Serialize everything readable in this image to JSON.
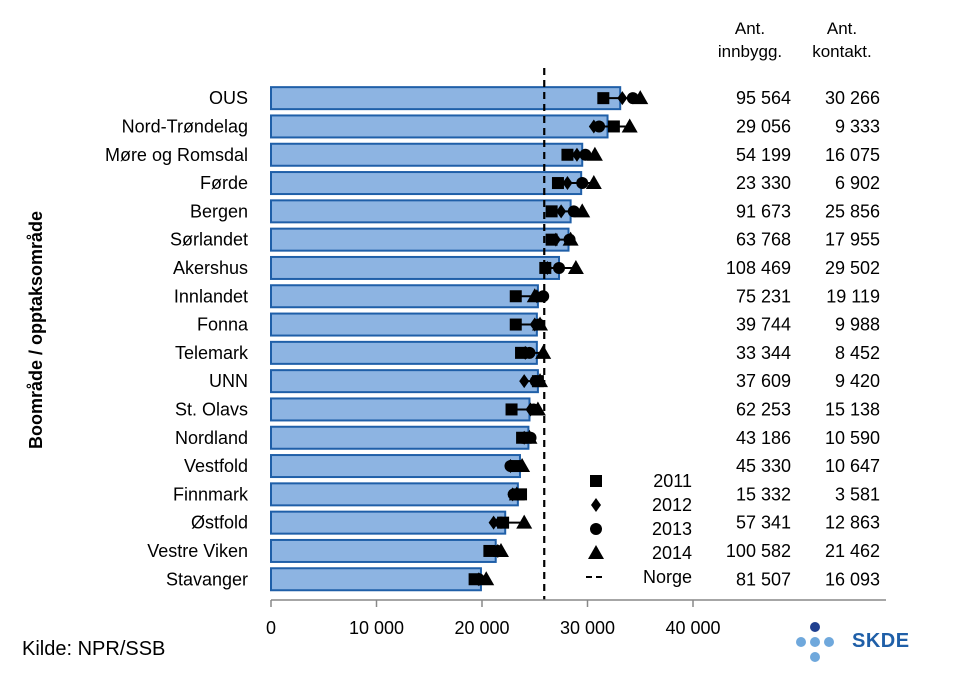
{
  "chart_data": {
    "type": "bar",
    "ylabel": "Boområde / opptaksområde",
    "xlim": [
      0,
      40000
    ],
    "xticks": [
      0,
      10000,
      20000,
      30000,
      40000
    ],
    "xtick_labels": [
      "0",
      "10 000",
      "20 000",
      "30 000",
      "40 000"
    ],
    "reference_line": {
      "name": "Norge",
      "value": 25900
    },
    "table_headers": {
      "population": "Ant.\ninnbygg.",
      "contacts": "Ant.\nkontakt."
    },
    "table_header_lines": {
      "population": [
        "Ant.",
        "innbygg."
      ],
      "contacts": [
        "Ant.",
        "kontakt."
      ]
    },
    "bar_color": "#8db4e2",
    "bar_edge_color": "#1f5fa8",
    "legend": {
      "placement": "bottom-right",
      "entries": [
        {
          "label": "2011",
          "marker": "square"
        },
        {
          "label": "2012",
          "marker": "diamond"
        },
        {
          "label": "2013",
          "marker": "circle"
        },
        {
          "label": "2014",
          "marker": "triangle"
        },
        {
          "label": "Norge",
          "marker": "dashed-line"
        }
      ]
    },
    "categories": [
      "OUS",
      "Nord-Trøndelag",
      "Møre og Romsdal",
      "Førde",
      "Bergen",
      "Sørlandet",
      "Akershus",
      "Innlandet",
      "Fonna",
      "Telemark",
      "UNN",
      "St. Olavs",
      "Nordland",
      "Vestfold",
      "Finnmark",
      "Østfold",
      "Vestre Viken",
      "Stavanger"
    ],
    "values": [
      33100,
      31900,
      29500,
      29400,
      28400,
      28200,
      27300,
      25300,
      25200,
      25200,
      25300,
      24500,
      24400,
      23600,
      23400,
      22200,
      21300,
      19900
    ],
    "series": [
      {
        "name": "2011",
        "marker": "square",
        "values": [
          31500,
          32500,
          28100,
          27200,
          26600,
          26600,
          26000,
          23200,
          23200,
          23700,
          25300,
          22800,
          23800,
          23200,
          23700,
          22000,
          20700,
          19300
        ]
      },
      {
        "name": "2012",
        "marker": "diamond",
        "values": [
          33300,
          30600,
          29000,
          28100,
          27500,
          27000,
          26200,
          25200,
          25000,
          24100,
          24000,
          24600,
          24000,
          22700,
          22900,
          21100,
          21500,
          19700
        ]
      },
      {
        "name": "2013",
        "marker": "circle",
        "values": [
          34300,
          31100,
          29800,
          29500,
          28700,
          28300,
          27300,
          25800,
          25400,
          24500,
          25100,
          24900,
          24600,
          22700,
          23000,
          21800,
          21500,
          19700
        ]
      },
      {
        "name": "2014",
        "marker": "triangle",
        "values": [
          35000,
          34000,
          30700,
          30600,
          29500,
          28400,
          28900,
          25000,
          25500,
          25800,
          25500,
          25300,
          24500,
          23800,
          23300,
          24000,
          21800,
          20400
        ]
      }
    ],
    "population": [
      "95 564",
      "29 056",
      "54 199",
      "23 330",
      "91 673",
      "63 768",
      "108 469",
      "75 231",
      "39 744",
      "33 344",
      "37 609",
      "62 253",
      "43 186",
      "45 330",
      "15 332",
      "57 341",
      "100 582",
      "81 507"
    ],
    "contacts": [
      "30 266",
      "9 333",
      "16 075",
      "6 902",
      "25 856",
      "17 955",
      "29 502",
      "19 119",
      "9 988",
      "8 452",
      "9 420",
      "15 138",
      "10 590",
      "10 647",
      "3 581",
      "12 863",
      "21 462",
      "16 093"
    ]
  },
  "source": "Kilde: NPR/SSB",
  "logo": {
    "text": "SKDE",
    "dot_colors": [
      "#1f3f8f",
      "#6fa8dc"
    ]
  }
}
